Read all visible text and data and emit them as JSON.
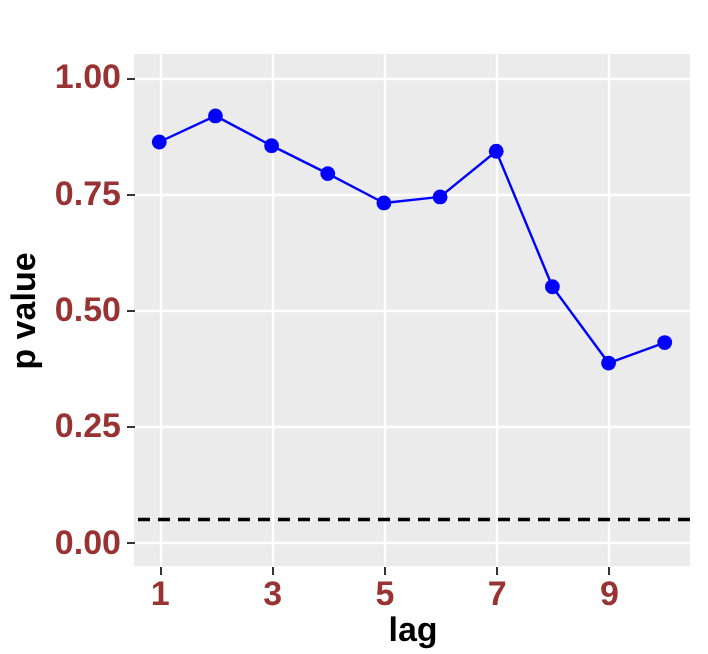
{
  "chart_data": {
    "type": "line",
    "xlabel": "lag",
    "ylabel": "p value",
    "x": [
      1,
      2,
      3,
      4,
      5,
      6,
      7,
      8,
      9,
      10
    ],
    "series": [
      {
        "color": "#0000ff",
        "values": [
          0.861,
          0.917,
          0.853,
          0.793,
          0.73,
          0.743,
          0.841,
          0.55,
          0.386,
          0.43
        ]
      }
    ],
    "xlim": [
      0.55,
      10.45
    ],
    "xticks": [
      1,
      3,
      5,
      7,
      9
    ],
    "ylim": [
      -0.05,
      1.05
    ],
    "yticks": [
      {
        "value": 0,
        "label": "0.00"
      },
      {
        "value": 0.25,
        "label": "0.25"
      },
      {
        "value": 0.5,
        "label": "0.50"
      },
      {
        "value": 0.75,
        "label": "0.75"
      },
      {
        "value": 1,
        "label": "1.00"
      }
    ],
    "ref_lines": [
      {
        "axis": "y",
        "value": 0.05,
        "color": "#000000",
        "line_style": "dashed"
      }
    ],
    "grid": true,
    "marker": "circle",
    "line_style": "solid"
  }
}
